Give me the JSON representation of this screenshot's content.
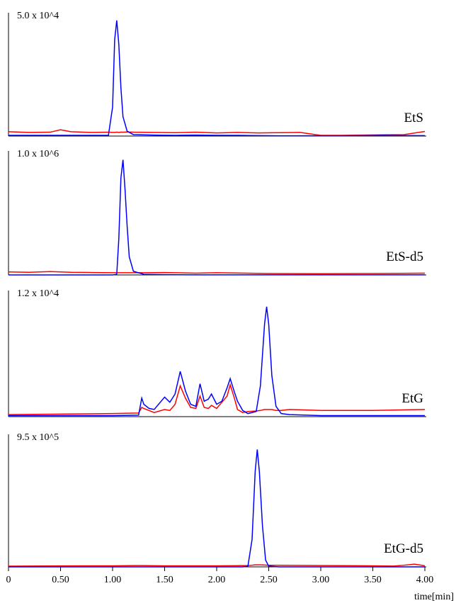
{
  "chart_data": [
    {
      "type": "line",
      "scale_label": "5.0 x 10^4",
      "label": "EtS",
      "xlim": [
        0,
        4
      ],
      "ylim": [
        0,
        50000
      ],
      "x": [
        0,
        0.2,
        0.4,
        0.5,
        0.6,
        0.8,
        0.96,
        1.0,
        1.02,
        1.04,
        1.06,
        1.08,
        1.1,
        1.14,
        1.2,
        1.4,
        1.6,
        1.8,
        2.0,
        2.2,
        2.4,
        2.6,
        2.8,
        3.0,
        3.2,
        3.4,
        3.6,
        3.8,
        4.0
      ],
      "series": [
        {
          "color": "#ff0000",
          "values": [
            1800,
            1500,
            1600,
            2600,
            1800,
            1500,
            1600,
            1500,
            1500,
            1600,
            1500,
            1600,
            1600,
            1700,
            1600,
            1500,
            1400,
            1600,
            1300,
            1500,
            1300,
            1400,
            1500,
            300,
            300,
            400,
            500,
            600,
            1900
          ]
        },
        {
          "color": "#0000ff",
          "values": [
            300,
            300,
            300,
            300,
            300,
            300,
            300,
            12000,
            40000,
            48000,
            38000,
            20000,
            8000,
            2000,
            600,
            400,
            300,
            400,
            300,
            300,
            200,
            100,
            100,
            100,
            100,
            200,
            300,
            200,
            200
          ]
        }
      ]
    },
    {
      "type": "line",
      "scale_label": "1.0 x 10^6",
      "label": "EtS-d5",
      "xlim": [
        0,
        4
      ],
      "ylim": [
        0,
        1000000
      ],
      "x": [
        0,
        0.2,
        0.4,
        0.6,
        0.8,
        1.0,
        1.04,
        1.06,
        1.08,
        1.1,
        1.12,
        1.14,
        1.16,
        1.2,
        1.3,
        1.5,
        1.8,
        2.0,
        2.5,
        3.0,
        3.5,
        4.0
      ],
      "series": [
        {
          "color": "#ff0000",
          "values": [
            25000,
            22000,
            28000,
            22000,
            20000,
            18000,
            18000,
            18000,
            18000,
            18000,
            18000,
            18000,
            18000,
            18000,
            18000,
            20000,
            15000,
            18000,
            12000,
            10000,
            12000,
            15000
          ]
        },
        {
          "color": "#0000ff",
          "values": [
            0,
            0,
            0,
            0,
            0,
            0,
            5000,
            300000,
            800000,
            950000,
            700000,
            400000,
            150000,
            30000,
            5000,
            2000,
            1000,
            1000,
            1000,
            1000,
            1000,
            1000
          ]
        }
      ]
    },
    {
      "type": "line",
      "scale_label": "1.2 x 10^4",
      "label": "EtG",
      "xlim": [
        0,
        4
      ],
      "ylim": [
        0,
        12000
      ],
      "x": [
        0,
        0.5,
        1.0,
        1.25,
        1.28,
        1.3,
        1.35,
        1.4,
        1.5,
        1.55,
        1.6,
        1.65,
        1.7,
        1.75,
        1.8,
        1.84,
        1.88,
        1.92,
        1.95,
        2.0,
        2.05,
        2.1,
        2.13,
        2.17,
        2.2,
        2.25,
        2.3,
        2.38,
        2.42,
        2.46,
        2.48,
        2.5,
        2.53,
        2.57,
        2.62,
        2.7,
        3.0,
        3.5,
        4.0
      ],
      "series": [
        {
          "color": "#ff0000",
          "values": [
            200,
            250,
            300,
            350,
            900,
            800,
            600,
            400,
            700,
            600,
            1200,
            3000,
            1800,
            900,
            800,
            2000,
            900,
            800,
            1100,
            800,
            1400,
            2000,
            3100,
            1800,
            700,
            400,
            500,
            550,
            600,
            700,
            700,
            700,
            700,
            600,
            600,
            700,
            600,
            600,
            700
          ]
        },
        {
          "color": "#0000ff",
          "values": [
            100,
            100,
            100,
            150,
            1800,
            1200,
            800,
            700,
            1900,
            1400,
            2200,
            4400,
            2500,
            1200,
            1000,
            3200,
            1500,
            1700,
            2200,
            1200,
            1500,
            2800,
            3700,
            2400,
            1500,
            600,
            300,
            500,
            3000,
            9000,
            10700,
            9000,
            4000,
            1000,
            300,
            200,
            100,
            100,
            100
          ]
        }
      ]
    },
    {
      "type": "line",
      "scale_label": "9.5 x 10^5",
      "label": "EtG-d5",
      "xlim": [
        0,
        4
      ],
      "ylim": [
        0,
        950000
      ],
      "xlabel": "time[min]",
      "xticks": [
        0,
        {
          "value": 0.5,
          "label": "0.50"
        },
        {
          "value": 1,
          "label": "1.00"
        },
        {
          "value": 1.5,
          "label": "1.50"
        },
        {
          "value": 2,
          "label": "2.00"
        },
        {
          "value": 2.5,
          "label": "2.50"
        },
        {
          "value": 3,
          "label": "3.00"
        },
        {
          "value": 3.5,
          "label": "3.50"
        },
        {
          "value": 4,
          "label": "4.00"
        }
      ],
      "x": [
        0,
        0.5,
        1.0,
        1.25,
        1.5,
        2.0,
        2.25,
        2.3,
        2.34,
        2.37,
        2.39,
        2.41,
        2.44,
        2.47,
        2.5,
        2.6,
        3.0,
        3.5,
        3.7,
        3.8,
        3.9,
        4.0
      ],
      "series": [
        {
          "color": "#ff0000",
          "values": [
            5000,
            7000,
            8000,
            10000,
            8000,
            8000,
            9000,
            9000,
            12000,
            15000,
            15000,
            15000,
            14000,
            13000,
            12000,
            12000,
            10000,
            8000,
            6000,
            12000,
            20000,
            8000
          ]
        },
        {
          "color": "#0000ff",
          "values": [
            0,
            0,
            0,
            0,
            0,
            0,
            0,
            5000,
            200000,
            700000,
            860000,
            700000,
            300000,
            50000,
            5000,
            0,
            0,
            0,
            0,
            0,
            0,
            0
          ]
        }
      ]
    }
  ]
}
